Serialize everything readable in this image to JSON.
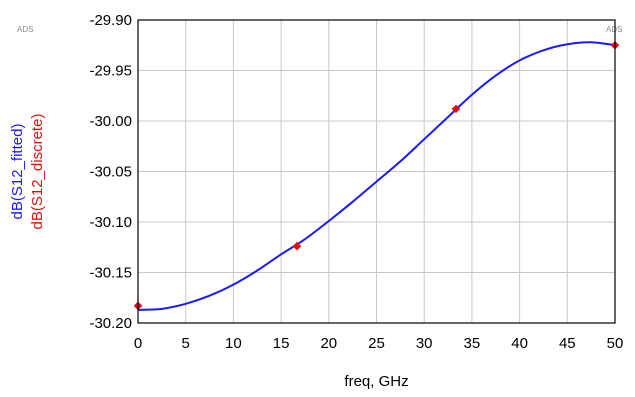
{
  "watermarks": [
    "ADS",
    "ADS"
  ],
  "chart_data": {
    "type": "line",
    "xlabel": "freq, GHz",
    "ylabels": [
      {
        "text": "dB(S12_fitted)",
        "color": "#1a1aff"
      },
      {
        "text": "dB(S12_discrete)",
        "color": "#e01010"
      }
    ],
    "xlim": [
      0,
      50
    ],
    "ylim": [
      -30.2,
      -29.9
    ],
    "x_ticks": [
      "0",
      "5",
      "10",
      "15",
      "20",
      "25",
      "30",
      "35",
      "40",
      "45",
      "50"
    ],
    "y_ticks": [
      "-29.90",
      "-29.95",
      "-30.00",
      "-30.05",
      "-30.10",
      "-30.15",
      "-30.20"
    ],
    "x_tick_values": [
      0,
      5,
      10,
      15,
      20,
      25,
      30,
      35,
      40,
      45,
      50
    ],
    "y_tick_values": [
      -29.9,
      -29.95,
      -30.0,
      -30.05,
      -30.1,
      -30.15,
      -30.2
    ],
    "grid": true,
    "series": [
      {
        "kind": "line",
        "color": "#1a1aff",
        "x": [
          0,
          2.5,
          5,
          7.5,
          10,
          12.5,
          15,
          17.5,
          20,
          22.5,
          25,
          27.5,
          30,
          32.5,
          35,
          37.5,
          40,
          42.5,
          45,
          47.5,
          50
        ],
        "y": [
          -30.187,
          -30.186,
          -30.181,
          -30.173,
          -30.162,
          -30.148,
          -30.132,
          -30.117,
          -30.099,
          -30.08,
          -30.06,
          -30.04,
          -30.018,
          -29.996,
          -29.974,
          -29.955,
          -29.94,
          -29.93,
          -29.924,
          -29.922,
          -29.925
        ]
      },
      {
        "kind": "scatter",
        "color": "#e01010",
        "x": [
          0,
          16.667,
          33.333,
          50
        ],
        "y": [
          -30.183,
          -30.124,
          -29.988,
          -29.925
        ]
      }
    ]
  }
}
